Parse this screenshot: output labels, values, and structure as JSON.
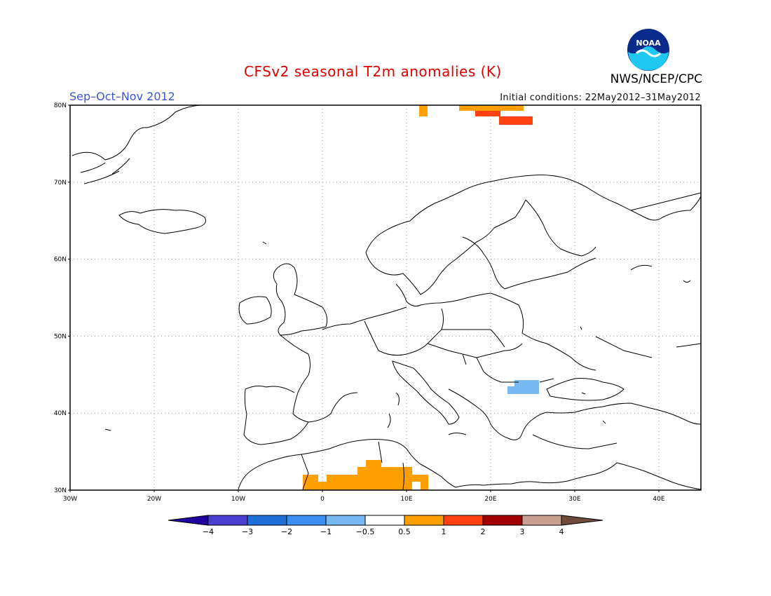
{
  "title": "CFSv2 seasonal T2m anomalies (K)",
  "season": "Sep–Oct–Nov 2012",
  "initial_conditions": "Initial conditions: 22May2012–31May2012",
  "agency": "NWS/NCEP/CPC",
  "logo": {
    "icon": "noaa-logo",
    "text": "NOAA"
  },
  "map": {
    "lon_range": [
      -30,
      45
    ],
    "lat_range": [
      30,
      80
    ],
    "lat_ticks": [
      "30N",
      "40N",
      "50N",
      "60N",
      "70N",
      "80N"
    ],
    "lon_ticks": [
      "30W",
      "20W",
      "10W",
      "0",
      "10E",
      "20E",
      "30E",
      "40E"
    ]
  },
  "colorbar": {
    "labels": [
      "−4",
      "−3",
      "−2",
      "−1",
      "−0.5",
      "0.5",
      "1",
      "2",
      "3",
      "4"
    ],
    "colors": [
      "#1e00a0",
      "#4a3fd0",
      "#1e6fd8",
      "#3c8ff0",
      "#78b8f0",
      "#ffffff",
      "#ffa000",
      "#ff4010",
      "#a00000",
      "#c8a090",
      "#6e4c3c"
    ]
  },
  "anomaly_colors": {
    "orange": "#ffa000",
    "red": "#ff4010",
    "light_blue": "#78b8f0"
  }
}
